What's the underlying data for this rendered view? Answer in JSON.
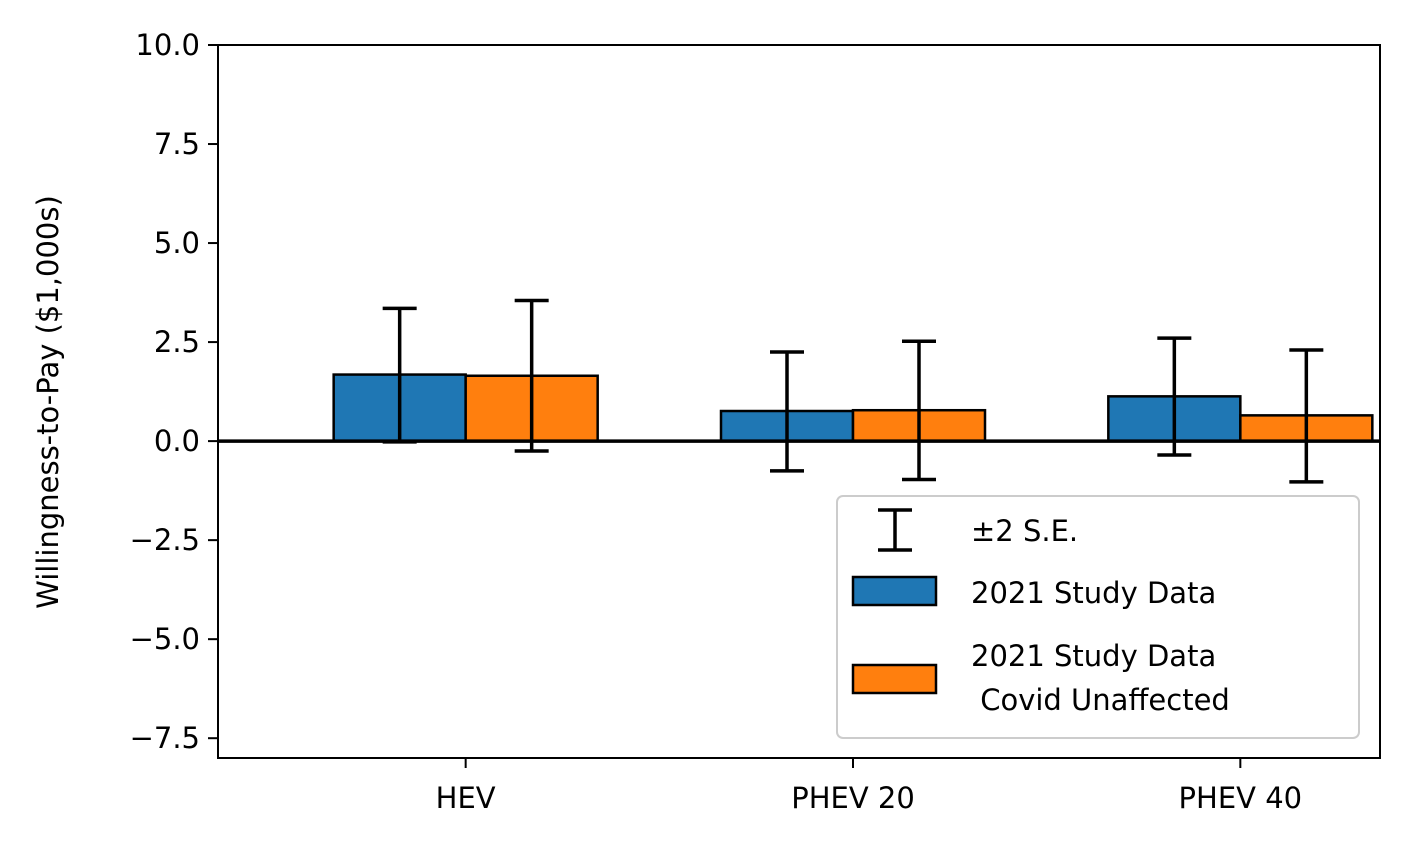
{
  "chart_data": {
    "type": "bar",
    "categories": [
      "HEV",
      "PHEV 20",
      "PHEV 40"
    ],
    "ylabel": "Willingness-to-Pay ($1,000s)",
    "xlabel": "",
    "ylim": [
      -8.0,
      10.0
    ],
    "yticks": [
      -7.5,
      -5.0,
      -2.5,
      0.0,
      2.5,
      5.0,
      7.5,
      10.0
    ],
    "ytick_labels": [
      "−7.5",
      "−5.0",
      "−2.5",
      "0.0",
      "2.5",
      "5.0",
      "7.5",
      "10.0"
    ],
    "grid": false,
    "zero_line": true,
    "series": [
      {
        "name": "2021 Study Data",
        "color": "#1f77b4",
        "values": [
          1.68,
          0.76,
          1.13
        ],
        "error_low": [
          -0.02,
          -0.75,
          -0.35
        ],
        "error_high": [
          3.35,
          2.25,
          2.6
        ]
      },
      {
        "name": "2021 Study Data\n Covid Unaffected",
        "color": "#ff7f0e",
        "values": [
          1.65,
          0.78,
          0.65
        ],
        "error_low": [
          -0.25,
          -0.97,
          -1.03
        ],
        "error_high": [
          3.55,
          2.52,
          2.3
        ]
      }
    ],
    "legend": {
      "position": "lower-right",
      "entries": [
        "±2 S.E.",
        "2021 Study Data",
        "2021 Study Data",
        " Covid Unaffected"
      ]
    }
  }
}
